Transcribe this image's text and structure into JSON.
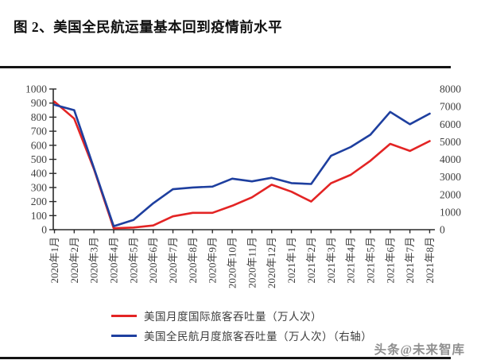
{
  "title": "图 2、美国全民航运量基本回到疫情前水平",
  "watermark": "头条@未来智库",
  "colors": {
    "series_red": "#e32424",
    "series_blue": "#1e3f9f",
    "divider": "#141414",
    "axis_line": "#2b2b2b",
    "axis_text": "#3f3f3f",
    "watermark_gray": "#8f8f8f"
  },
  "chart_data": {
    "type": "line",
    "title": "美国全民航运量基本回到疫情前水平",
    "categories": [
      "2020年1月",
      "2020年2月",
      "2020年3月",
      "2020年4月",
      "2020年5月",
      "2020年6月",
      "2020年7月",
      "2020年8月",
      "2020年9月",
      "2020年10月",
      "2020年11月",
      "2020年12月",
      "2021年1月",
      "2021年2月",
      "2021年3月",
      "2021年4月",
      "2021年5月",
      "2021年6月",
      "2021年7月",
      "2021年8月"
    ],
    "series": [
      {
        "name": "美国月度国际旅客吞吐量（万人次）",
        "axis": "left",
        "color": "#e32424",
        "values": [
          910,
          790,
          430,
          10,
          15,
          30,
          95,
          120,
          120,
          170,
          230,
          320,
          270,
          200,
          330,
          390,
          490,
          610,
          560,
          630
        ]
      },
      {
        "name": "美国全民航月度旅客吞吐量（万人次）（右轴）",
        "axis": "right",
        "color": "#1e3f9f",
        "values": [
          7100,
          6800,
          3500,
          200,
          550,
          1500,
          2300,
          2400,
          2450,
          2900,
          2750,
          2950,
          2650,
          2600,
          4200,
          4700,
          5400,
          6700,
          6000,
          6600
        ]
      }
    ],
    "left_axis": {
      "min": 0,
      "max": 1000,
      "step": 100
    },
    "right_axis": {
      "min": 0,
      "max": 8000,
      "step": 1000
    },
    "grid": false,
    "legend_position": "bottom"
  }
}
